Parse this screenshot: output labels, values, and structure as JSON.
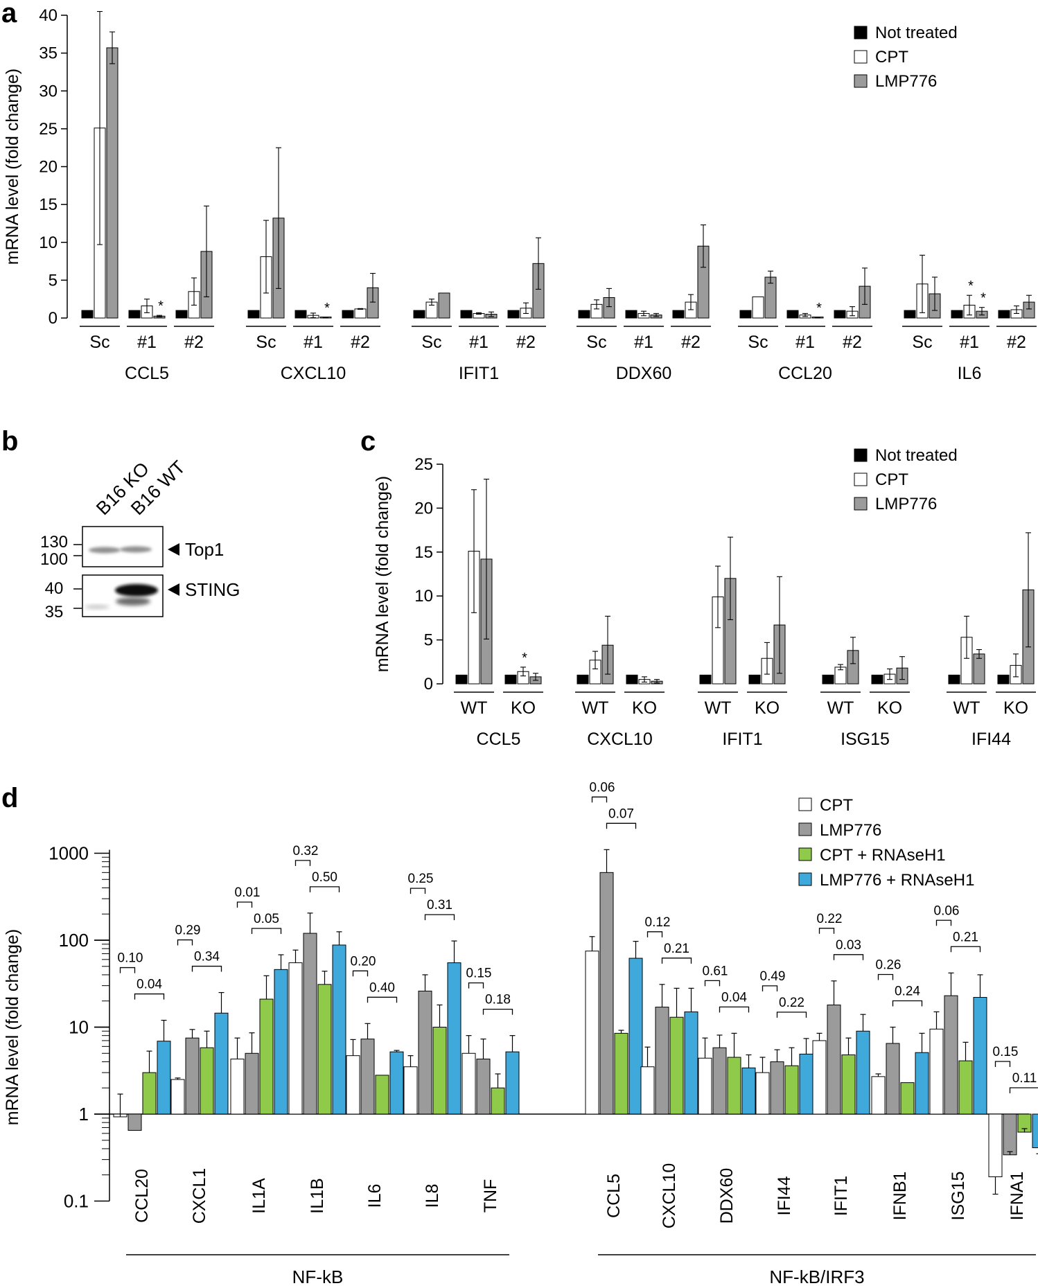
{
  "panels": {
    "a": "a",
    "b": "b",
    "c": "c",
    "d": "d"
  },
  "colors": {
    "not_treated": "#000000",
    "cpt": "#ffffff",
    "lmp776": "#9b9b9b",
    "cpt_rnaseh1": "#8fca4a",
    "lmp776_rnaseh1": "#3fa9dc"
  },
  "chart_data": [
    {
      "panel": "a",
      "type": "bar",
      "ylabel": "mRNA level (fold change)",
      "ylim": [
        0,
        40
      ],
      "yticks": [
        "0",
        "5",
        "10",
        "15",
        "20",
        "25",
        "30",
        "35",
        "40"
      ],
      "legend": [
        "Not treated",
        "CPT",
        "LMP776"
      ],
      "genes": [
        {
          "name": "CCL5",
          "groups": [
            {
              "label": "Sc",
              "values": [
                1,
                25.1,
                35.7
              ],
              "err": [
                0,
                15.4,
                2.1
              ],
              "stars": [
                0,
                0,
                0
              ]
            },
            {
              "label": "#1",
              "values": [
                1,
                1.6,
                0.25
              ],
              "err": [
                0,
                0.9,
                0.1
              ],
              "stars": [
                0,
                0,
                1
              ]
            },
            {
              "label": "#2",
              "values": [
                1,
                3.5,
                8.8
              ],
              "err": [
                0,
                1.8,
                6.0
              ],
              "stars": [
                0,
                0,
                0
              ]
            }
          ]
        },
        {
          "name": "CXCL10",
          "groups": [
            {
              "label": "Sc",
              "values": [
                1,
                8.1,
                13.2
              ],
              "err": [
                0,
                4.8,
                9.3
              ],
              "stars": [
                0,
                0,
                0
              ]
            },
            {
              "label": "#1",
              "values": [
                1,
                0.35,
                0.05
              ],
              "err": [
                0,
                0.3,
                0.05
              ],
              "stars": [
                0,
                0,
                1
              ]
            },
            {
              "label": "#2",
              "values": [
                1,
                1.2,
                4.0
              ],
              "err": [
                0,
                0.05,
                1.9
              ],
              "stars": [
                0,
                0,
                0
              ]
            }
          ]
        },
        {
          "name": "IFIT1",
          "groups": [
            {
              "label": "Sc",
              "values": [
                1,
                2.1,
                3.3
              ],
              "err": [
                0,
                0.4,
                0
              ],
              "stars": [
                0,
                0,
                0
              ]
            },
            {
              "label": "#1",
              "values": [
                1,
                0.6,
                0.5
              ],
              "err": [
                0,
                0.1,
                0.3
              ],
              "stars": [
                0,
                0,
                0
              ]
            },
            {
              "label": "#2",
              "values": [
                1,
                1.3,
                7.2
              ],
              "err": [
                0,
                0.7,
                3.4
              ],
              "stars": [
                0,
                0,
                0
              ]
            }
          ]
        },
        {
          "name": "DDX60",
          "groups": [
            {
              "label": "Sc",
              "values": [
                1,
                1.8,
                2.7
              ],
              "err": [
                0,
                0.6,
                1.2
              ],
              "stars": [
                0,
                0,
                0
              ]
            },
            {
              "label": "#1",
              "values": [
                1,
                0.6,
                0.4
              ],
              "err": [
                0,
                0.3,
                0.2
              ],
              "stars": [
                0,
                0,
                0
              ]
            },
            {
              "label": "#2",
              "values": [
                1,
                2.1,
                9.5
              ],
              "err": [
                0,
                1.0,
                2.8
              ],
              "stars": [
                0,
                0,
                0
              ]
            }
          ]
        },
        {
          "name": "CCL20",
          "groups": [
            {
              "label": "Sc",
              "values": [
                1,
                2.8,
                5.4
              ],
              "err": [
                0,
                0,
                0.8
              ],
              "stars": [
                0,
                0,
                0
              ]
            },
            {
              "label": "#1",
              "values": [
                1,
                0.4,
                0.05
              ],
              "err": [
                0,
                0.2,
                0.05
              ],
              "stars": [
                0,
                0,
                1
              ]
            },
            {
              "label": "#2",
              "values": [
                1,
                0.9,
                4.2
              ],
              "err": [
                0,
                0.6,
                2.4
              ],
              "stars": [
                0,
                0,
                0
              ]
            }
          ]
        },
        {
          "name": "IL6",
          "groups": [
            {
              "label": "Sc",
              "values": [
                1,
                4.5,
                3.2
              ],
              "err": [
                0,
                3.8,
                2.2
              ],
              "stars": [
                0,
                0,
                0
              ]
            },
            {
              "label": "#1",
              "values": [
                1,
                1.7,
                0.9
              ],
              "err": [
                0,
                1.3,
                0.5
              ],
              "stars": [
                0,
                1,
                1
              ]
            },
            {
              "label": "#2",
              "values": [
                1,
                1.1,
                2.1
              ],
              "err": [
                0,
                0.5,
                0.9
              ],
              "stars": [
                0,
                0,
                0
              ]
            }
          ]
        }
      ]
    },
    {
      "panel": "c",
      "type": "bar",
      "ylabel": "mRNA level (fold change)",
      "ylim": [
        0,
        25
      ],
      "yticks": [
        "0",
        "5",
        "10",
        "15",
        "20",
        "25"
      ],
      "legend": [
        "Not treated",
        "CPT",
        "LMP776"
      ],
      "genes": [
        {
          "name": "CCL5",
          "groups": [
            {
              "label": "WT",
              "values": [
                1,
                15.1,
                14.2
              ],
              "err": [
                0,
                7.0,
                9.1
              ],
              "stars": [
                0,
                0,
                0
              ]
            },
            {
              "label": "KO",
              "values": [
                1,
                1.4,
                0.8
              ],
              "err": [
                0,
                0.5,
                0.4
              ],
              "stars": [
                0,
                1,
                0
              ]
            }
          ]
        },
        {
          "name": "CXCL10",
          "groups": [
            {
              "label": "WT",
              "values": [
                1,
                2.7,
                4.4
              ],
              "err": [
                0,
                1.0,
                3.3
              ],
              "stars": [
                0,
                0,
                0
              ]
            },
            {
              "label": "KO",
              "values": [
                1,
                0.5,
                0.3
              ],
              "err": [
                0,
                0.3,
                0.2
              ],
              "stars": [
                0,
                0,
                0
              ]
            }
          ]
        },
        {
          "name": "IFIT1",
          "groups": [
            {
              "label": "WT",
              "values": [
                1,
                9.9,
                12.0
              ],
              "err": [
                0,
                3.5,
                4.7
              ],
              "stars": [
                0,
                0,
                0
              ]
            },
            {
              "label": "KO",
              "values": [
                1,
                2.9,
                6.7
              ],
              "err": [
                0,
                1.8,
                5.5
              ],
              "stars": [
                0,
                0,
                0
              ]
            }
          ]
        },
        {
          "name": "ISG15",
          "groups": [
            {
              "label": "WT",
              "values": [
                1,
                1.9,
                3.8
              ],
              "err": [
                0,
                0.3,
                1.5
              ],
              "stars": [
                0,
                0,
                0
              ]
            },
            {
              "label": "KO",
              "values": [
                1,
                1.1,
                1.8
              ],
              "err": [
                0,
                0.6,
                1.3
              ],
              "stars": [
                0,
                0,
                0
              ]
            }
          ]
        },
        {
          "name": "IFI44",
          "groups": [
            {
              "label": "WT",
              "values": [
                1,
                5.3,
                3.4
              ],
              "err": [
                0,
                2.4,
                0.5
              ],
              "stars": [
                0,
                0,
                0
              ]
            },
            {
              "label": "KO",
              "values": [
                1,
                2.1,
                10.7
              ],
              "err": [
                0,
                1.3,
                6.5
              ],
              "stars": [
                0,
                0,
                0
              ]
            }
          ]
        }
      ]
    },
    {
      "panel": "d",
      "type": "bar",
      "scale": "log",
      "ylabel": "mRNA level (fold change)",
      "ylim": [
        0.1,
        1000
      ],
      "yticks": [
        "0.1",
        "1",
        "10",
        "100",
        "1000"
      ],
      "legend": [
        "CPT",
        "LMP776",
        "CPT + RNAseH1",
        "LMP776 + RNAseH1"
      ],
      "categories": [
        "CCL20",
        "CXCL1",
        "IL1A",
        "IL1B",
        "IL6",
        "IL8",
        "TNF",
        "CCL5",
        "CXCL10",
        "DDX60",
        "IFI44",
        "IFIT1",
        "IFNB1",
        "ISG15",
        "IFNA1"
      ],
      "series": [
        {
          "name": "CPT",
          "values": [
            0.93,
            2.5,
            4.3,
            55,
            4.7,
            3.5,
            5.0,
            75,
            3.5,
            4.4,
            3.0,
            7.0,
            2.7,
            9.5,
            0.19
          ]
        },
        {
          "name": "LMP776",
          "values": [
            0.65,
            7.5,
            5.0,
            120,
            7.3,
            26,
            4.3,
            600,
            17,
            5.8,
            4.0,
            18,
            6.5,
            23,
            0.34
          ]
        },
        {
          "name": "CPT + RNAseH1",
          "values": [
            3.0,
            5.8,
            21,
            31,
            2.8,
            10,
            2.0,
            8.5,
            13,
            4.5,
            3.6,
            4.8,
            2.3,
            4.1,
            0.62
          ]
        },
        {
          "name": "LMP776 + RNAseH1",
          "values": [
            6.9,
            14.5,
            46,
            88,
            5.2,
            55,
            5.2,
            62,
            15,
            3.4,
            4.9,
            9.0,
            5.1,
            22,
            0.41
          ]
        }
      ],
      "err_top": [
        [
          1.7,
          2.6,
          7.5,
          77,
          7.2,
          4.7,
          8.0,
          110,
          5.9,
          7.5,
          4.5,
          8.5,
          2.9,
          15,
          0
        ],
        [
          0,
          9.4,
          8.6,
          205,
          11,
          40,
          7.3,
          1100,
          31,
          8.1,
          5.5,
          34,
          10,
          42,
          0.37
        ],
        [
          5.3,
          9.0,
          39,
          44,
          0,
          18,
          2.9,
          9.2,
          28,
          8.5,
          5.8,
          7.5,
          0,
          6.7,
          0.68
        ],
        [
          12,
          25,
          68,
          125,
          5.4,
          98,
          8.0,
          97,
          28,
          4.8,
          7.4,
          14,
          8.5,
          40,
          0
        ]
      ],
      "err_bottom": [
        [
          0,
          0,
          0,
          0,
          0,
          0,
          0,
          0,
          0,
          0,
          0,
          0,
          0,
          0,
          0.12
        ],
        [
          0,
          0,
          0,
          0,
          0,
          0,
          0,
          0,
          0,
          0,
          0,
          0,
          0,
          0,
          0
        ],
        [
          0,
          0,
          0,
          0,
          0,
          0,
          0,
          0,
          0,
          0,
          0,
          0,
          0,
          0,
          0
        ],
        [
          0,
          0,
          0,
          0,
          0,
          0,
          0,
          0,
          0,
          0,
          0,
          0,
          0,
          0,
          0.35
        ]
      ],
      "pvalues_lmp776": [
        "0.10",
        "0.29",
        "0.01",
        "0.32",
        "0.20",
        "0.25",
        "0.15",
        "0.06",
        "0.12",
        "0.61",
        "0.49",
        "0.22",
        "0.26",
        "0.06",
        "0.15"
      ],
      "pvalues_rnaseh1": [
        "0.04",
        "0.34",
        "0.05",
        "0.50",
        "0.40",
        "0.31",
        "0.18",
        "0.07",
        "0.21",
        "0.04",
        "0.22",
        "0.03",
        "0.24",
        "0.21",
        "0.11"
      ],
      "groups": [
        {
          "label": "NF-kB",
          "from": 0,
          "to": 6
        },
        {
          "label": "NF-kB/IRF3",
          "from": 7,
          "to": 14
        }
      ]
    }
  ],
  "blot": {
    "lanes": [
      "B16 KO",
      "B16 WT"
    ],
    "markers_top": [
      "130",
      "100"
    ],
    "markers_bottom": [
      "40",
      "35"
    ],
    "bands": [
      "Top1",
      "STING"
    ]
  }
}
